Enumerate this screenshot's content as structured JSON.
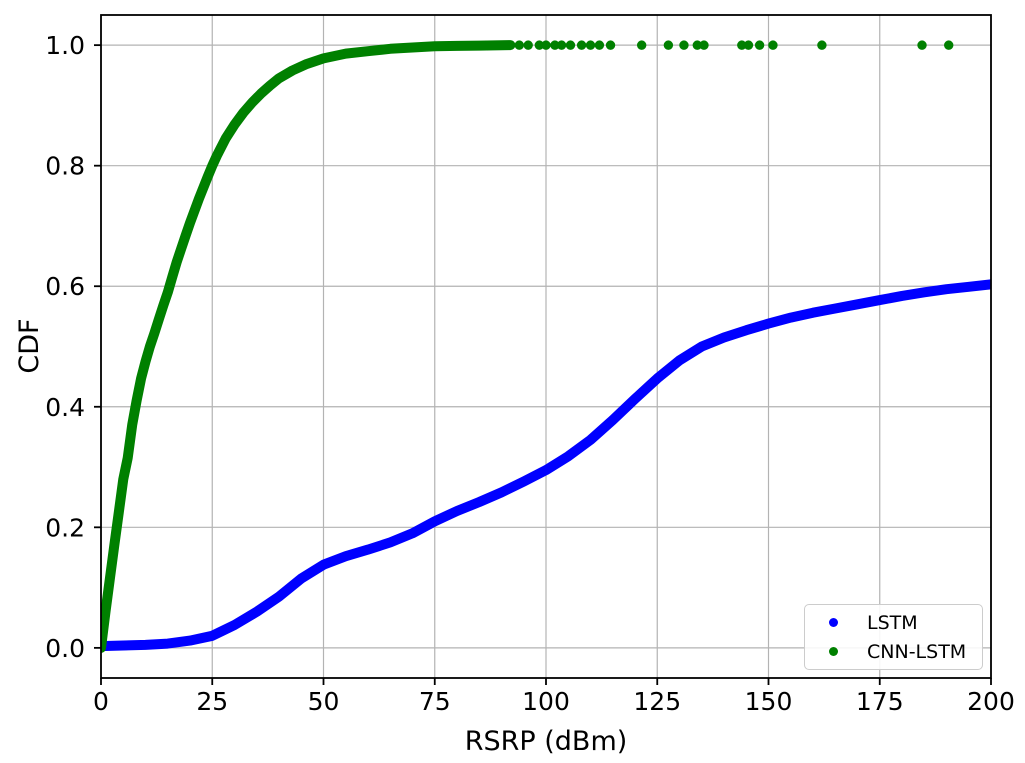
{
  "figure": {
    "background": "#ffffff"
  },
  "legend": {
    "position": "lower right",
    "items": [
      {
        "label": "LSTM",
        "color": "#0000ff"
      },
      {
        "label": "CNN-LSTM",
        "color": "#008000"
      }
    ]
  },
  "chart_data": {
    "type": "scatter",
    "title": "",
    "xlabel": "RSRP (dBm)",
    "ylabel": "CDF",
    "xlim": [
      0,
      200
    ],
    "ylim": [
      -0.05,
      1.05
    ],
    "x_ticks": [
      0,
      25,
      50,
      75,
      100,
      125,
      150,
      175,
      200
    ],
    "y_ticks": [
      "0.0",
      "0.2",
      "0.4",
      "0.6",
      "0.8",
      "1.0"
    ],
    "grid": true,
    "grid_color": "#b3b3b3",
    "spine_color": "#000000",
    "text_color": "#000000",
    "legend_position": "lower right",
    "series": [
      {
        "name": "LSTM",
        "color": "#0000ff",
        "marker": "dot-band",
        "points": [
          [
            0,
            0.003
          ],
          [
            5,
            0.004
          ],
          [
            10,
            0.005
          ],
          [
            15,
            0.007
          ],
          [
            20,
            0.012
          ],
          [
            25,
            0.02
          ],
          [
            30,
            0.038
          ],
          [
            35,
            0.06
          ],
          [
            40,
            0.085
          ],
          [
            45,
            0.115
          ],
          [
            50,
            0.138
          ],
          [
            55,
            0.152
          ],
          [
            60,
            0.163
          ],
          [
            65,
            0.175
          ],
          [
            70,
            0.19
          ],
          [
            75,
            0.21
          ],
          [
            80,
            0.227
          ],
          [
            85,
            0.242
          ],
          [
            90,
            0.258
          ],
          [
            95,
            0.276
          ],
          [
            100,
            0.295
          ],
          [
            105,
            0.318
          ],
          [
            110,
            0.345
          ],
          [
            115,
            0.378
          ],
          [
            120,
            0.413
          ],
          [
            125,
            0.447
          ],
          [
            130,
            0.477
          ],
          [
            135,
            0.5
          ],
          [
            140,
            0.515
          ],
          [
            145,
            0.527
          ],
          [
            150,
            0.538
          ],
          [
            155,
            0.548
          ],
          [
            160,
            0.556
          ],
          [
            165,
            0.563
          ],
          [
            170,
            0.57
          ],
          [
            175,
            0.577
          ],
          [
            180,
            0.584
          ],
          [
            185,
            0.59
          ],
          [
            190,
            0.595
          ],
          [
            195,
            0.599
          ],
          [
            200,
            0.603
          ]
        ]
      },
      {
        "name": "CNN-LSTM",
        "color": "#008000",
        "marker": "dot-band",
        "points": [
          [
            0,
            0
          ],
          [
            1,
            0.06
          ],
          [
            2,
            0.115
          ],
          [
            3,
            0.17
          ],
          [
            4,
            0.225
          ],
          [
            5,
            0.28
          ],
          [
            6,
            0.315
          ],
          [
            7,
            0.37
          ],
          [
            8,
            0.41
          ],
          [
            9,
            0.447
          ],
          [
            10,
            0.475
          ],
          [
            11,
            0.5
          ],
          [
            12,
            0.522
          ],
          [
            13,
            0.545
          ],
          [
            14,
            0.568
          ],
          [
            15,
            0.59
          ],
          [
            16,
            0.615
          ],
          [
            17,
            0.64
          ],
          [
            18,
            0.662
          ],
          [
            19,
            0.684
          ],
          [
            20,
            0.705
          ],
          [
            22,
            0.745
          ],
          [
            24,
            0.782
          ],
          [
            25,
            0.8
          ],
          [
            26,
            0.816
          ],
          [
            28,
            0.845
          ],
          [
            30,
            0.868
          ],
          [
            32,
            0.888
          ],
          [
            34,
            0.905
          ],
          [
            36,
            0.92
          ],
          [
            38,
            0.933
          ],
          [
            40,
            0.945
          ],
          [
            43,
            0.958
          ],
          [
            46,
            0.968
          ],
          [
            50,
            0.978
          ],
          [
            55,
            0.986
          ],
          [
            60,
            0.99
          ],
          [
            65,
            0.994
          ],
          [
            70,
            0.996
          ],
          [
            75,
            0.998
          ],
          [
            80,
            0.9988
          ],
          [
            85,
            0.9993
          ],
          [
            90,
            0.9998
          ],
          [
            92,
            1.0
          ]
        ],
        "saturation_y": 1.0,
        "saturation_dots_x": [
          94,
          96,
          98.5,
          100,
          102,
          103.5,
          105.5,
          108,
          110,
          112,
          114.5,
          121.5,
          127.5,
          131,
          134,
          135.5,
          144,
          145.5,
          148,
          151,
          162,
          184.5,
          190.5
        ]
      }
    ]
  }
}
